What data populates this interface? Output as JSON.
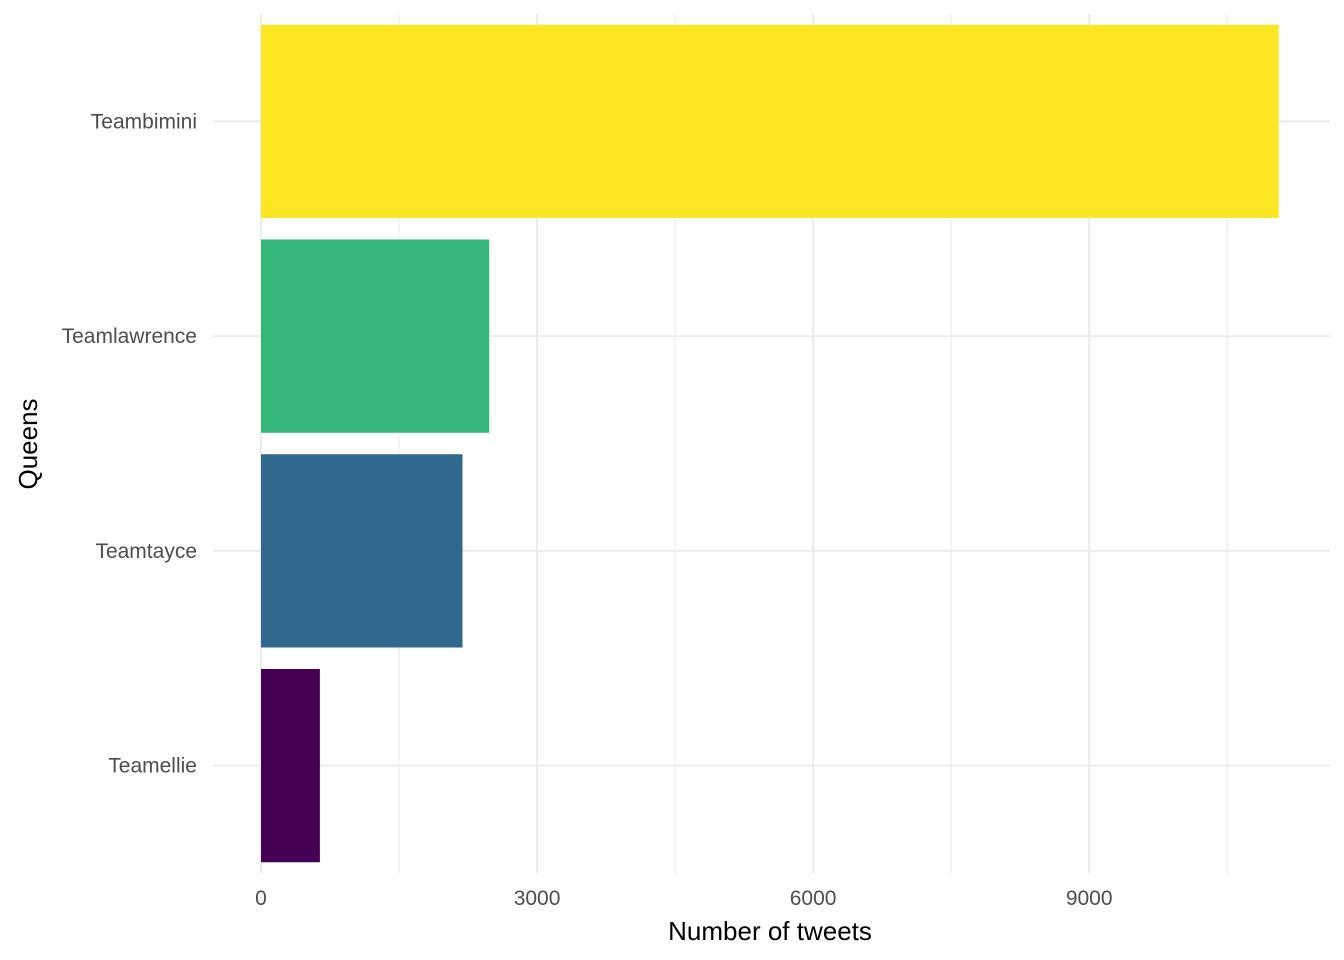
{
  "chart_data": {
    "type": "bar",
    "orientation": "horizontal",
    "title": "",
    "xlabel": "Number of tweets",
    "ylabel": "Queens",
    "categories": [
      "Teambimini",
      "Teamlawrence",
      "Teamtayce",
      "Teamellie"
    ],
    "values": [
      11060,
      2480,
      2190,
      640
    ],
    "colors": [
      "#FDE725",
      "#35B779",
      "#31688E",
      "#440154"
    ],
    "xlim": [
      0,
      11600
    ],
    "x_ticks": [
      0,
      3000,
      6000,
      9000
    ],
    "x_tick_labels": [
      "0",
      "3000",
      "6000",
      "9000"
    ],
    "grid": true,
    "legend": "none"
  }
}
